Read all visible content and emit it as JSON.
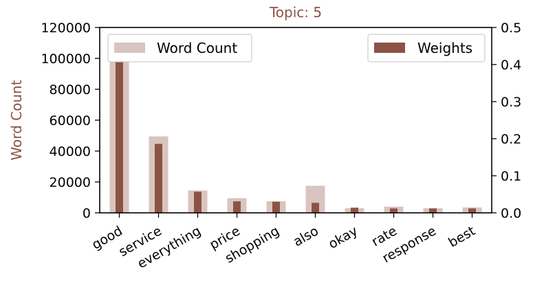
{
  "chart_data": {
    "type": "bar",
    "title": "Topic: 5",
    "ylabel": "Word Count",
    "y2label": "",
    "categories": [
      "good",
      "service",
      "everything",
      "price",
      "shopping",
      "also",
      "okay",
      "rate",
      "response",
      "best"
    ],
    "series": [
      {
        "name": "Word Count",
        "axis": "left",
        "color": "#d9c4bf",
        "values": [
          104000,
          49500,
          14500,
          9500,
          7500,
          17500,
          3000,
          4000,
          3000,
          3500
        ]
      },
      {
        "name": "Weights",
        "axis": "right",
        "color": "#8c5345",
        "values": [
          0.412,
          0.186,
          0.057,
          0.031,
          0.03,
          0.027,
          0.014,
          0.012,
          0.012,
          0.012
        ]
      }
    ],
    "ylim": [
      0,
      120000
    ],
    "y2lim": [
      0,
      0.5
    ],
    "yticks": [
      "0",
      "20000",
      "40000",
      "60000",
      "80000",
      "100000",
      "120000"
    ],
    "y2ticks": [
      "0.0",
      "0.1",
      "0.2",
      "0.3",
      "0.4",
      "0.5"
    ],
    "grid": false,
    "legend_placement": [
      "top-left",
      "top-right"
    ],
    "colors": {
      "title": "#8c5345",
      "ylabel": "#8c5345",
      "axis": "#000000"
    }
  }
}
